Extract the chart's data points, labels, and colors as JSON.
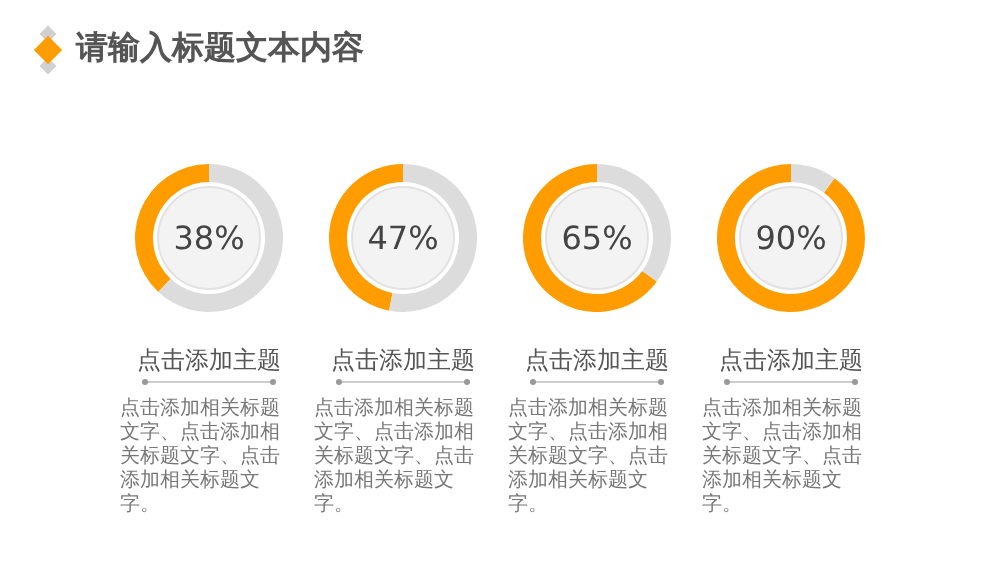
{
  "chart_data": [
    {
      "type": "other",
      "title": "请输入标题文本内容"
    },
    {
      "type": "donut",
      "title": "点击添加主题",
      "categories": [
        null,
        null
      ],
      "values": [
        38,
        62
      ],
      "colors": [
        "#ff9c00",
        "#dcdcdc"
      ],
      "annotations": [
        "38%",
        "点击添加相关标题文字、点击添加相关标题文字、点击添加相关标题文字。"
      ]
    },
    {
      "type": "donut",
      "title": "点击添加主题",
      "categories": [
        null,
        null
      ],
      "values": [
        47,
        53
      ],
      "colors": [
        "#ff9c00",
        "#dcdcdc"
      ],
      "annotations": [
        "47%",
        "点击添加相关标题文字、点击添加相关标题文字、点击添加相关标题文字。"
      ]
    },
    {
      "type": "donut",
      "title": "点击添加主题",
      "categories": [
        null,
        null
      ],
      "values": [
        65,
        35
      ],
      "colors": [
        "#ff9c00",
        "#dcdcdc"
      ],
      "annotations": [
        "65%",
        "点击添加相关标题文字、点击添加相关标题文字、点击添加相关标题文字。"
      ]
    },
    {
      "type": "donut",
      "title": "点击添加主题",
      "categories": [
        null,
        null
      ],
      "values": [
        90,
        10
      ],
      "colors": [
        "#ff9c00",
        "#dcdcdc"
      ],
      "annotations": [
        "90%",
        "点击添加相关标题文字、点击添加相关标题文字、点击添加相关标题文字。"
      ]
    }
  ]
}
